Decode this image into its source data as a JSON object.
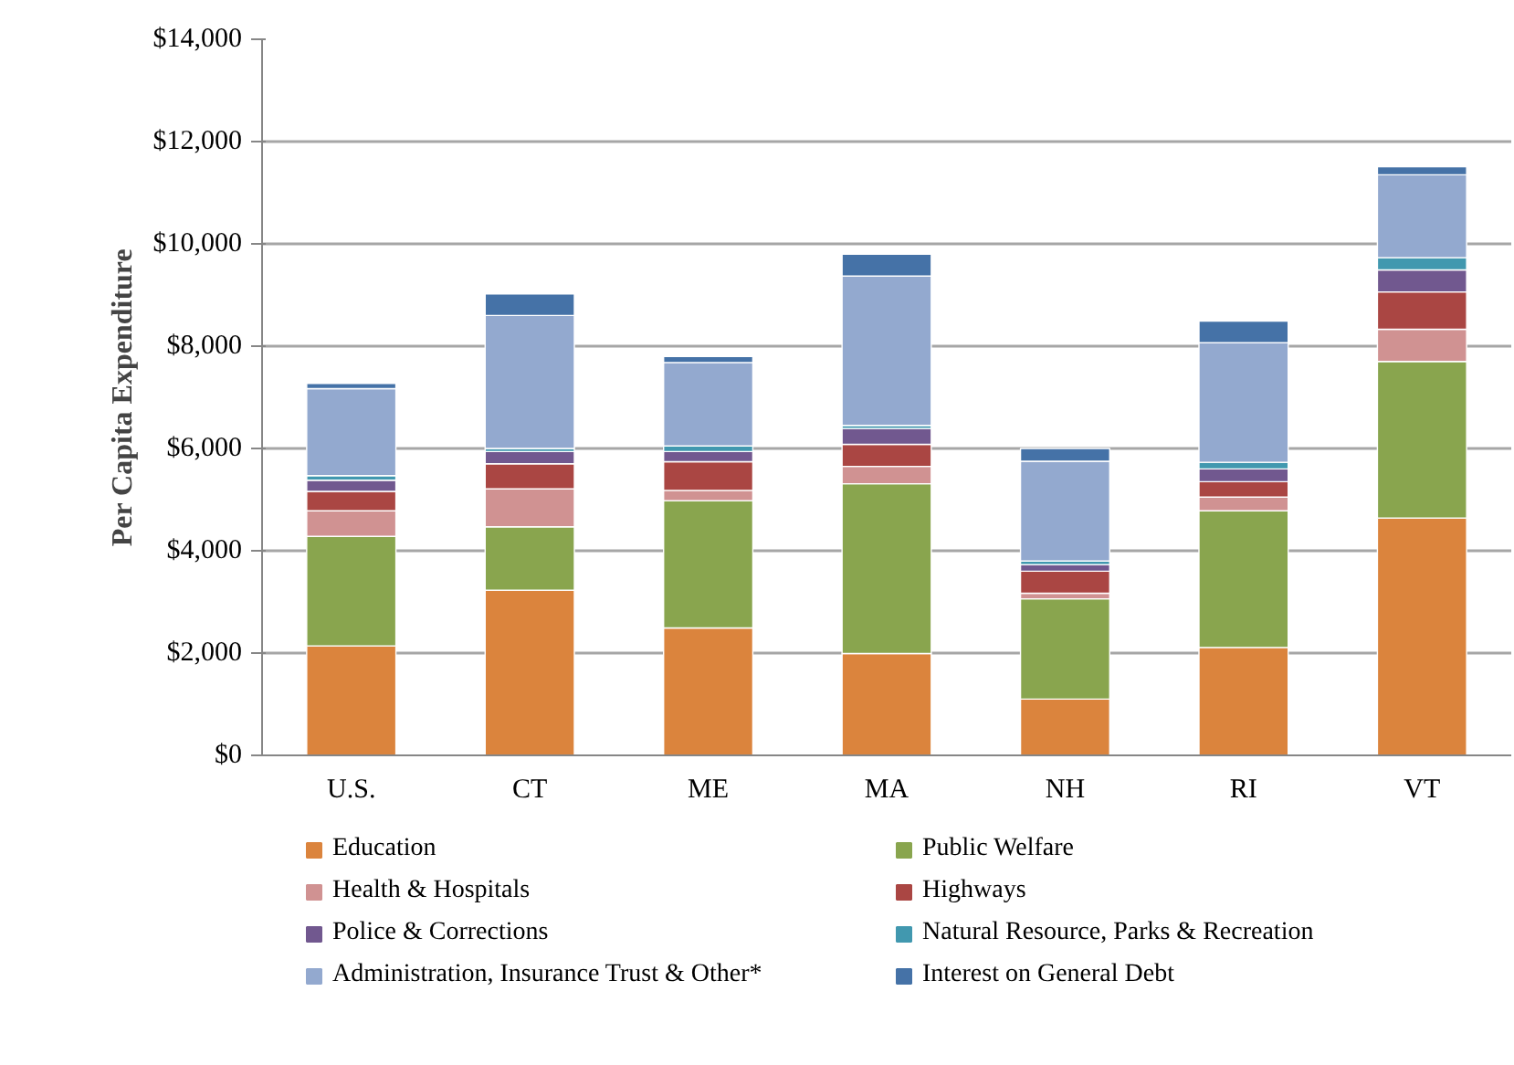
{
  "chart_data": {
    "type": "bar",
    "stacked": true,
    "ylabel": "Per Capita Expenditure",
    "categories": [
      "U.S.",
      "CT",
      "ME",
      "MA",
      "NH",
      "RI",
      "VT"
    ],
    "ylim": [
      0,
      14000
    ],
    "yticks": [
      {
        "value": 0,
        "label": "$0"
      },
      {
        "value": 2000,
        "label": "$2,000"
      },
      {
        "value": 4000,
        "label": "$4,000"
      },
      {
        "value": 6000,
        "label": "$6,000"
      },
      {
        "value": 8000,
        "label": "$8,000"
      },
      {
        "value": 10000,
        "label": "$10,000"
      },
      {
        "value": 12000,
        "label": "$12,000"
      },
      {
        "value": 14000,
        "label": "$14,000"
      }
    ],
    "grid": "y",
    "legend": "bottom",
    "series": [
      {
        "name": "Education",
        "color": "#db843d",
        "values": [
          2140,
          3230,
          2490,
          1990,
          1100,
          2110,
          4640
        ]
      },
      {
        "name": "Public Welfare",
        "color": "#89a54e",
        "values": [
          2140,
          1240,
          2490,
          3320,
          1960,
          2670,
          3060
        ]
      },
      {
        "name": "Health & Hospitals",
        "color": "#d09292",
        "values": [
          500,
          740,
          200,
          340,
          110,
          270,
          630
        ]
      },
      {
        "name": "Highways",
        "color": "#aa4643",
        "values": [
          380,
          490,
          560,
          430,
          430,
          300,
          730
        ]
      },
      {
        "name": "Police & Corrections",
        "color": "#71588f",
        "values": [
          220,
          240,
          200,
          310,
          130,
          250,
          430
        ]
      },
      {
        "name": "Natural Resource, Parks & Recreation",
        "color": "#4198af",
        "values": [
          90,
          60,
          110,
          60,
          70,
          130,
          240
        ]
      },
      {
        "name": "Administration, Insurance Trust & Other*",
        "color": "#93a9cf",
        "values": [
          1700,
          2600,
          1630,
          2920,
          1950,
          2340,
          1620
        ]
      },
      {
        "name": "Interest on General Debt",
        "color": "#4572a7",
        "values": [
          100,
          420,
          120,
          430,
          250,
          420,
          160
        ]
      }
    ]
  }
}
